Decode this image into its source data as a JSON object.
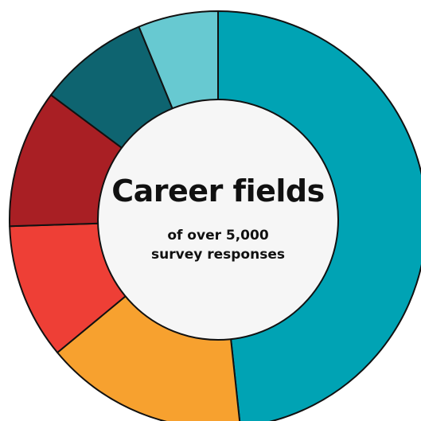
{
  "chart_data": {
    "type": "pie",
    "title": "Career fields",
    "subtitle_lines": [
      "of over 5,000",
      "survey responses"
    ],
    "categories": [
      "",
      "",
      "",
      "",
      "",
      ""
    ],
    "values": [
      48.3,
      15.7,
      10.5,
      10.7,
      8.6,
      6.2
    ],
    "colors": [
      "#00A3B4",
      "#F7A12F",
      "#EE3F36",
      "#A91F24",
      "#0E6470",
      "#67C9D1"
    ],
    "legend": "none",
    "hole": "donut",
    "start_angle": "12 o'clock, clockwise"
  }
}
